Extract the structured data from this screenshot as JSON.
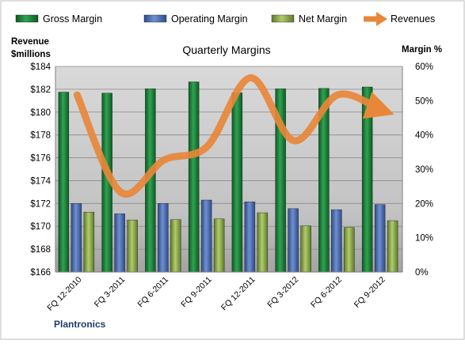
{
  "chart_data": {
    "type": "bar",
    "title": "Quarterly Margins",
    "company": "Plantronics",
    "y_left_label": [
      "Revenue",
      "$millions"
    ],
    "y_right_label": "Margin %",
    "categories": [
      "FQ 12-2010",
      "FQ 3-2011",
      "FQ 6-2011",
      "FQ 9-2011",
      "FQ 12-2011",
      "FQ 3-2012",
      "FQ 6-2012",
      "FQ 9-2012"
    ],
    "y_left_range": [
      166,
      184
    ],
    "y_left_ticks": [
      "$166",
      "$168",
      "$170",
      "$172",
      "$174",
      "$176",
      "$178",
      "$180",
      "$182",
      "$184"
    ],
    "y_right_range": [
      0,
      60
    ],
    "y_right_ticks": [
      "0%",
      "10%",
      "20%",
      "30%",
      "40%",
      "50%",
      "60%"
    ],
    "grid": true,
    "legend_position": "top",
    "series": [
      {
        "name": "Gross Margin",
        "axis": "right",
        "kind": "bar",
        "color": "#1f8a3c",
        "values": [
          52.5,
          52.2,
          53.5,
          55.5,
          52.3,
          53.5,
          53.6,
          54.0
        ]
      },
      {
        "name": "Operating Margin",
        "axis": "right",
        "kind": "bar",
        "color": "#4a6fb5",
        "values": [
          20.0,
          17.0,
          20.0,
          21.0,
          20.5,
          18.5,
          18.2,
          19.7
        ]
      },
      {
        "name": "Net Margin",
        "axis": "right",
        "kind": "bar",
        "color": "#8dad4a",
        "values": [
          17.5,
          15.2,
          15.3,
          15.5,
          17.3,
          13.5,
          13.0,
          15.0
        ]
      },
      {
        "name": "Revenues",
        "axis": "left",
        "kind": "line",
        "color": "#e8873a",
        "values": [
          181.5,
          173.0,
          175.8,
          177.0,
          183.0,
          177.5,
          181.5,
          180.2
        ]
      }
    ]
  }
}
